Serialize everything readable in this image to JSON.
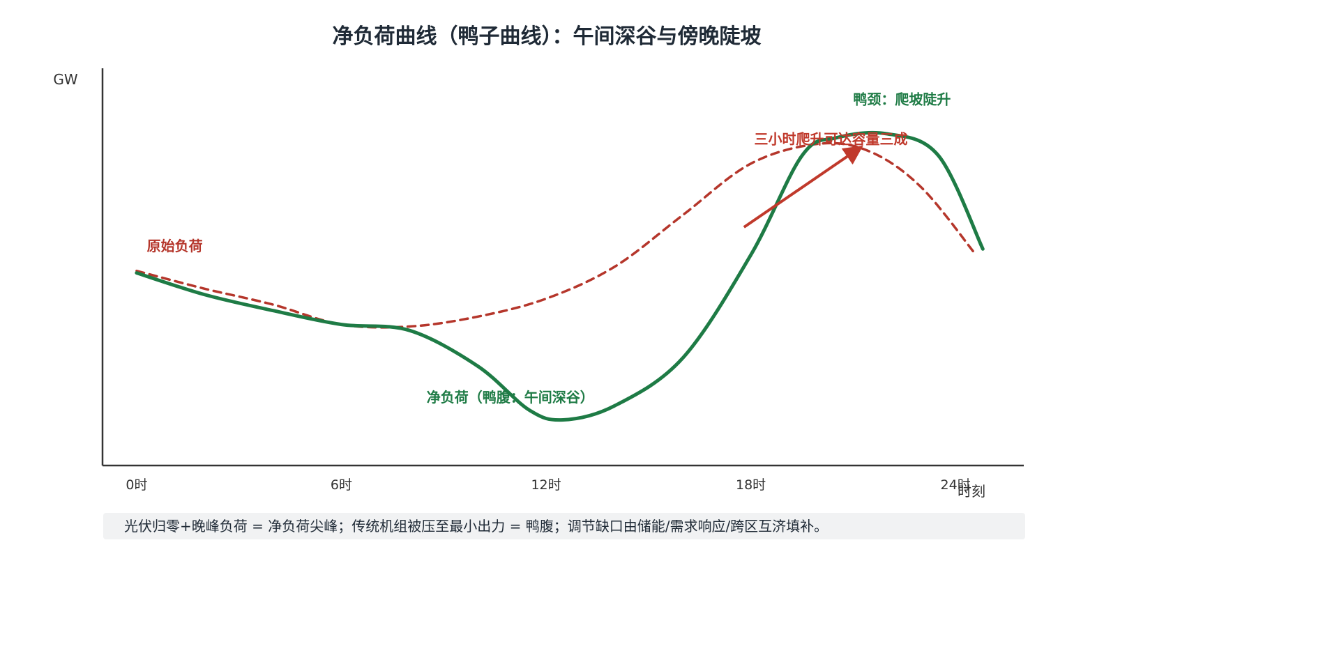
{
  "chart_data": {
    "type": "line",
    "title": "净负荷曲线（鸭子曲线）：午间深谷与傍晚陡坡",
    "ylabel": "GW",
    "xlabel": "时刻",
    "x_ticks": [
      {
        "value": 0,
        "label": "0时"
      },
      {
        "value": 6,
        "label": "6时"
      },
      {
        "value": 12,
        "label": "12时"
      },
      {
        "value": 18,
        "label": "18时"
      },
      {
        "value": 24,
        "label": "24时"
      }
    ],
    "xlim": [
      -1,
      26
    ],
    "ylim": [
      0,
      10
    ],
    "grid": false,
    "series": [
      {
        "name": "原始负荷",
        "style": "dashed",
        "color": "#b5362b",
        "x": [
          0,
          2,
          4,
          6,
          8,
          10,
          12,
          14,
          16,
          18,
          20,
          21.5,
          23,
          24.6
        ],
        "y": [
          4.9,
          4.45,
          4.05,
          3.55,
          3.5,
          3.75,
          4.2,
          5.0,
          6.3,
          7.6,
          8.1,
          7.9,
          7.0,
          5.3
        ]
      },
      {
        "name": "净负荷（鸭腹：午间深谷）",
        "style": "solid",
        "color": "#1e7b45",
        "x": [
          0,
          2,
          4,
          6,
          8,
          10,
          11.5,
          12.5,
          14,
          16,
          18,
          19.5,
          20.5,
          22,
          23.5,
          24.8
        ],
        "y": [
          4.85,
          4.3,
          3.9,
          3.55,
          3.4,
          2.5,
          1.4,
          1.15,
          1.5,
          2.7,
          5.3,
          7.8,
          8.25,
          8.35,
          7.8,
          5.45
        ]
      }
    ],
    "annotations": [
      {
        "text": "原始负荷",
        "color": "#b5362b",
        "x": 0.3,
        "y": 5.4
      },
      {
        "text": "净负荷（鸭腹：午间深谷）",
        "color": "#1e7b45",
        "x": 8.5,
        "y": 1.6
      },
      {
        "text": "鸭颈：爬坡陡升",
        "color": "#1e7b45",
        "x": 21.0,
        "y": 9.1
      },
      {
        "text": "三小时爬升可达容量三成",
        "color": "#c0392b",
        "x": 18.1,
        "y": 8.1
      }
    ],
    "arrow": {
      "color": "#c0392b",
      "from": [
        17.8,
        6.0
      ],
      "to": [
        21.2,
        8.0
      ]
    }
  },
  "footnote": "光伏归零+晚峰负荷 = 净负荷尖峰；传统机组被压至最小出力 = 鸭腹；调节缺口由储能/需求响应/跨区互济填补。"
}
